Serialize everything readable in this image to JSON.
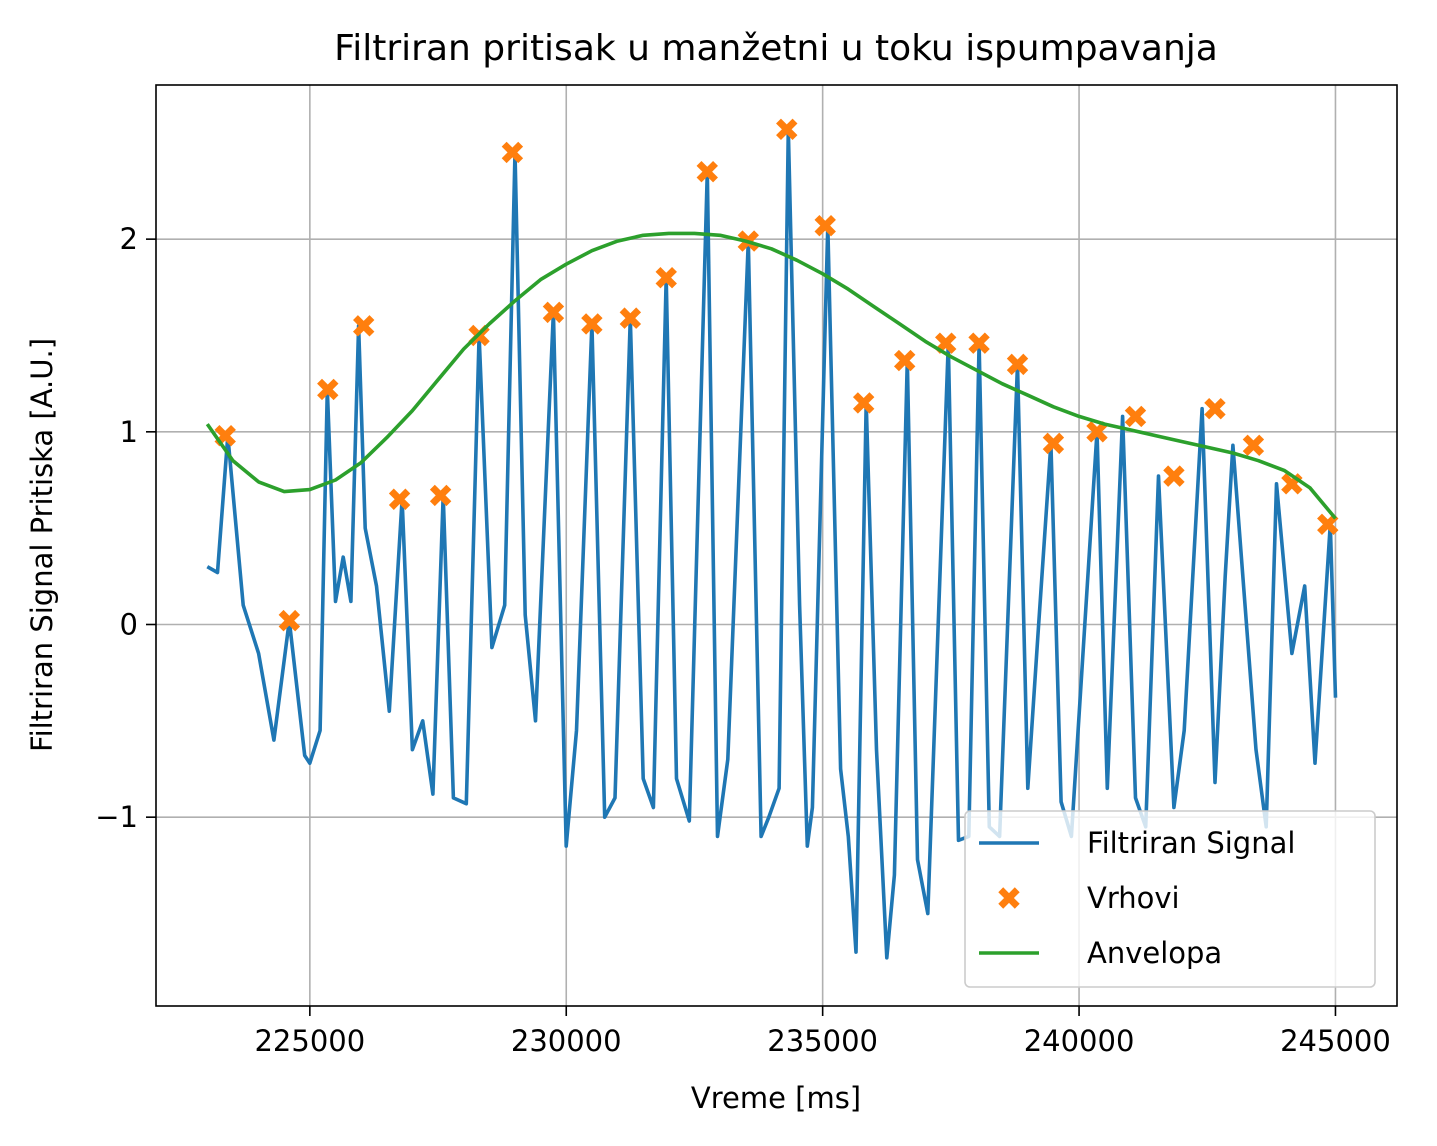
{
  "chart_data": {
    "type": "line",
    "title": "Filtriran pritisak u manžetni u toku ispumpavanja",
    "xlabel": "Vreme [ms]",
    "ylabel": "Filtriran Signal Pritiska [A.U.]",
    "xlim": [
      222000,
      246200
    ],
    "ylim": [
      -1.98,
      2.8
    ],
    "xticks": [
      225000,
      230000,
      235000,
      240000,
      245000
    ],
    "xtick_labels": [
      "225000",
      "230000",
      "235000",
      "240000",
      "245000"
    ],
    "yticks": [
      -1,
      0,
      1,
      2
    ],
    "ytick_labels": [
      "−1",
      "0",
      "1",
      "2"
    ],
    "grid": true,
    "legend_position": "lower right",
    "series": [
      {
        "name": "Filtriran Signal",
        "kind": "line",
        "color": "#1f77b4",
        "x": [
          223000,
          223200,
          223400,
          223700,
          224000,
          224300,
          224600,
          224900,
          225000,
          225200,
          225340,
          225500,
          225650,
          225800,
          225950,
          226080,
          226300,
          226550,
          226800,
          227000,
          227200,
          227400,
          227600,
          227800,
          228050,
          228300,
          228550,
          228800,
          229000,
          229200,
          229400,
          229750,
          230000,
          230200,
          230500,
          230750,
          230950,
          231250,
          231500,
          231700,
          231950,
          232150,
          232400,
          232750,
          232950,
          233150,
          233550,
          233800,
          233950,
          234150,
          234330,
          234550,
          234700,
          234800,
          235100,
          235350,
          235500,
          235650,
          235850,
          236050,
          236250,
          236400,
          236650,
          236850,
          237050,
          237450,
          237650,
          237850,
          238050,
          238250,
          238450,
          238800,
          239000,
          239200,
          239450,
          239650,
          239850,
          240350,
          240550,
          240850,
          241100,
          241300,
          241550,
          241850,
          242050,
          242400,
          242650,
          242850,
          243000,
          243450,
          243650,
          243850,
          244150,
          244400,
          244600,
          244900,
          245000
        ],
        "y": [
          0.3,
          0.27,
          0.98,
          0.1,
          -0.15,
          -0.6,
          0.02,
          -0.68,
          -0.72,
          -0.55,
          1.22,
          0.12,
          0.35,
          0.12,
          1.55,
          0.5,
          0.2,
          -0.45,
          0.65,
          -0.65,
          -0.5,
          -0.88,
          0.67,
          -0.9,
          -0.93,
          1.5,
          -0.12,
          0.1,
          2.45,
          0.05,
          -0.5,
          1.62,
          -1.15,
          -0.55,
          1.56,
          -1.0,
          -0.9,
          1.59,
          -0.8,
          -0.95,
          1.8,
          -0.8,
          -1.02,
          2.35,
          -1.1,
          -0.7,
          1.99,
          -1.1,
          -1.0,
          -0.85,
          2.57,
          0.1,
          -1.15,
          -0.95,
          2.07,
          -0.75,
          -1.1,
          -1.7,
          1.15,
          -0.65,
          -1.73,
          -1.3,
          1.37,
          -1.22,
          -1.5,
          1.46,
          -1.12,
          -1.1,
          1.46,
          -1.05,
          -1.1,
          1.35,
          -0.85,
          -0.05,
          0.94,
          -0.92,
          -1.1,
          1.0,
          -0.85,
          1.08,
          -0.9,
          -1.05,
          0.77,
          -0.95,
          -0.55,
          1.12,
          -0.82,
          0.25,
          0.93,
          -0.65,
          -1.05,
          0.73,
          -0.15,
          0.2,
          -0.72,
          0.52,
          -0.38
        ]
      },
      {
        "name": "Vrhovi",
        "kind": "markers",
        "color": "#ff7f0e",
        "x": [
          223350,
          224600,
          225350,
          226050,
          226750,
          227550,
          228300,
          228950,
          229750,
          230500,
          231250,
          231950,
          232750,
          233550,
          234300,
          235050,
          235800,
          236600,
          237400,
          238050,
          238800,
          239500,
          240350,
          241100,
          241850,
          242650,
          243400,
          244150,
          244850
        ],
        "y": [
          0.98,
          0.02,
          1.22,
          1.55,
          0.65,
          0.67,
          1.5,
          2.45,
          1.62,
          1.56,
          1.59,
          1.8,
          2.35,
          1.99,
          2.57,
          2.07,
          1.15,
          1.37,
          1.46,
          1.46,
          1.35,
          0.94,
          1.0,
          1.08,
          0.77,
          1.12,
          0.93,
          0.73,
          0.52
        ]
      },
      {
        "name": "Anvelopa",
        "kind": "line",
        "color": "#2ca02c",
        "x": [
          223000,
          223500,
          224000,
          224500,
          225000,
          225500,
          226000,
          226500,
          227000,
          227500,
          228000,
          228500,
          229000,
          229500,
          230000,
          230500,
          231000,
          231500,
          232000,
          232500,
          233000,
          233500,
          234000,
          234500,
          235000,
          235500,
          236000,
          236500,
          237000,
          237500,
          238000,
          238500,
          239000,
          239500,
          240000,
          240500,
          241000,
          241500,
          242000,
          242500,
          243000,
          243500,
          244000,
          244500,
          245000
        ],
        "y": [
          1.04,
          0.85,
          0.74,
          0.69,
          0.7,
          0.75,
          0.84,
          0.97,
          1.11,
          1.27,
          1.43,
          1.56,
          1.68,
          1.79,
          1.87,
          1.94,
          1.99,
          2.02,
          2.03,
          2.03,
          2.02,
          1.99,
          1.95,
          1.89,
          1.82,
          1.74,
          1.65,
          1.56,
          1.47,
          1.39,
          1.32,
          1.25,
          1.19,
          1.13,
          1.08,
          1.04,
          1.01,
          0.98,
          0.95,
          0.92,
          0.89,
          0.85,
          0.8,
          0.71,
          0.55
        ]
      }
    ]
  }
}
